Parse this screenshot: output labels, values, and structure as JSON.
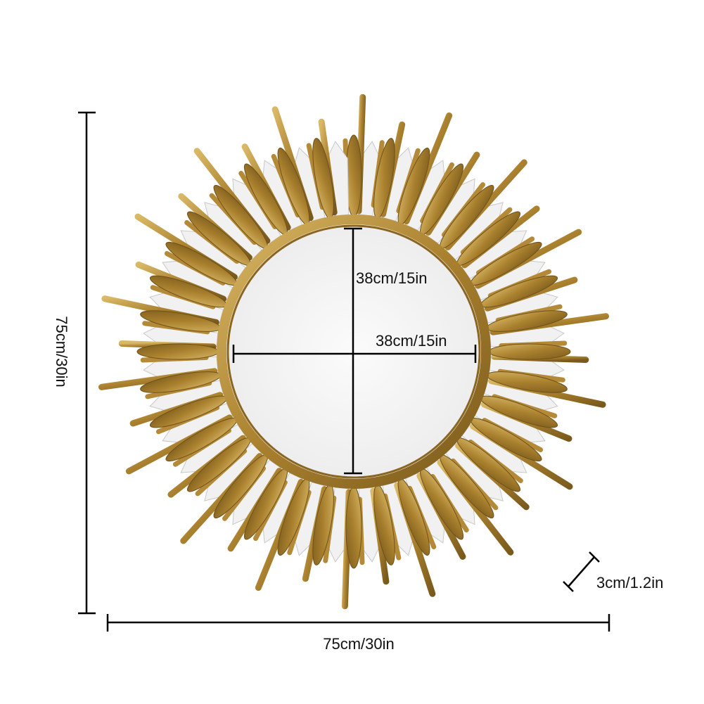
{
  "dimensions": {
    "inner_height": "38cm/15in",
    "inner_width": "38cm/15in",
    "outer_height": "75cm/30in",
    "outer_width": "75cm/30in",
    "depth": "3cm/1.2in"
  }
}
